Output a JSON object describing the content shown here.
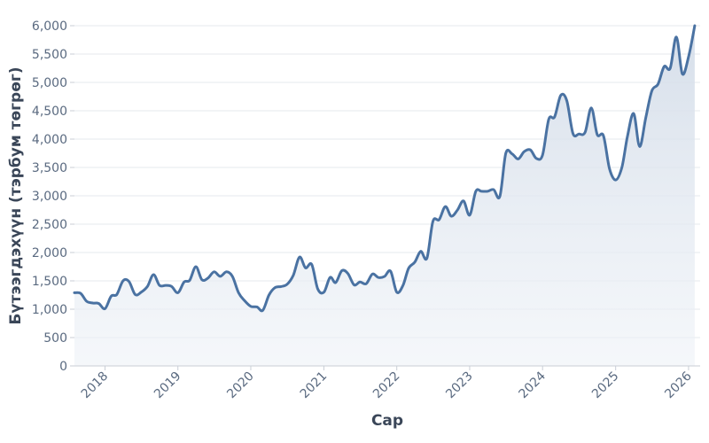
{
  "chart_data": {
    "type": "area",
    "xlabel": "Сар",
    "ylabel": "Бүтээгдэхүүн (тэрбум төгрөг)",
    "ylim": [
      0,
      6000
    ],
    "xlim": [
      "2017-08-01",
      "2026-02-28"
    ],
    "grid": true,
    "y_ticks": [
      "0",
      "500",
      "1,000",
      "1,500",
      "2,000",
      "2,500",
      "3,000",
      "3,500",
      "4,000",
      "4,500",
      "5,000",
      "5,500",
      "6,000"
    ],
    "y_tick_values": [
      0,
      500,
      1000,
      1500,
      2000,
      2500,
      3000,
      3500,
      4000,
      4500,
      5000,
      5500,
      6000
    ],
    "x_ticks": [
      "2018",
      "2019",
      "2020",
      "2021",
      "2022",
      "2023",
      "2024",
      "2025",
      "2026"
    ],
    "x_tick_dates": [
      "2018-01-01",
      "2019-01-01",
      "2020-01-01",
      "2021-01-01",
      "2022-01-01",
      "2023-01-01",
      "2024-01-01",
      "2025-01-01",
      "2026-01-01"
    ],
    "line_color": "#4a72a2",
    "fill_color": "#dce4ee",
    "series": [
      {
        "x": [
          "2017-08",
          "2017-09",
          "2017-10",
          "2017-11",
          "2017-12",
          "2018-01",
          "2018-02",
          "2018-03",
          "2018-04",
          "2018-05",
          "2018-06",
          "2018-07",
          "2018-08",
          "2018-09",
          "2018-10",
          "2018-11",
          "2018-12",
          "2019-01",
          "2019-02",
          "2019-03",
          "2019-04",
          "2019-05",
          "2019-06",
          "2019-07",
          "2019-08",
          "2019-09",
          "2019-10",
          "2019-11",
          "2019-12",
          "2020-01",
          "2020-02",
          "2020-03",
          "2020-04",
          "2020-05",
          "2020-06",
          "2020-07",
          "2020-08",
          "2020-09",
          "2020-10",
          "2020-11",
          "2020-12",
          "2021-01",
          "2021-02",
          "2021-03",
          "2021-04",
          "2021-05",
          "2021-06",
          "2021-07",
          "2021-08",
          "2021-09",
          "2021-10",
          "2021-11",
          "2021-12",
          "2022-01",
          "2022-02",
          "2022-03",
          "2022-04",
          "2022-05",
          "2022-06",
          "2022-07",
          "2022-08",
          "2022-09",
          "2022-10",
          "2022-11",
          "2022-12",
          "2023-01",
          "2023-02",
          "2023-03",
          "2023-04",
          "2023-05",
          "2023-06",
          "2023-07",
          "2023-08",
          "2023-09",
          "2023-10",
          "2023-11",
          "2023-12",
          "2024-01",
          "2024-02",
          "2024-03",
          "2024-04",
          "2024-05",
          "2024-06",
          "2024-07",
          "2024-08",
          "2024-09",
          "2024-10",
          "2024-11",
          "2024-12",
          "2025-01",
          "2025-02",
          "2025-03",
          "2025-04",
          "2025-05",
          "2025-06",
          "2025-07",
          "2025-08",
          "2025-09",
          "2025-10",
          "2025-11",
          "2025-12",
          "2026-01",
          "2026-02"
        ],
        "values": [
          1290,
          1280,
          1140,
          1110,
          1100,
          1010,
          1230,
          1260,
          1500,
          1490,
          1260,
          1300,
          1400,
          1610,
          1420,
          1420,
          1400,
          1290,
          1480,
          1510,
          1750,
          1520,
          1550,
          1660,
          1580,
          1660,
          1580,
          1290,
          1150,
          1050,
          1040,
          980,
          1250,
          1380,
          1400,
          1440,
          1600,
          1920,
          1730,
          1790,
          1360,
          1300,
          1560,
          1470,
          1680,
          1630,
          1430,
          1480,
          1450,
          1620,
          1560,
          1580,
          1670,
          1300,
          1420,
          1720,
          1830,
          2020,
          1900,
          2550,
          2580,
          2810,
          2640,
          2750,
          2910,
          2660,
          3080,
          3080,
          3080,
          3110,
          2990,
          3750,
          3740,
          3650,
          3780,
          3810,
          3660,
          3720,
          4350,
          4390,
          4770,
          4680,
          4100,
          4090,
          4120,
          4550,
          4080,
          4060,
          3480,
          3280,
          3500,
          4050,
          4450,
          3870,
          4380,
          4850,
          4970,
          5280,
          5250,
          5800,
          5150,
          5450,
          6000
        ]
      }
    ]
  }
}
